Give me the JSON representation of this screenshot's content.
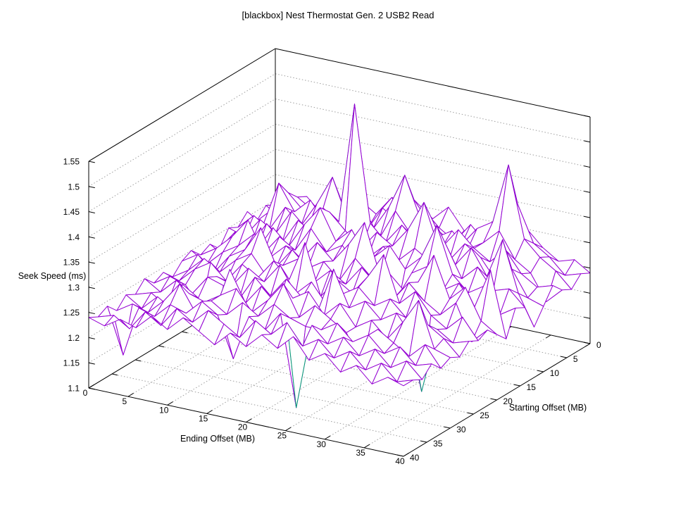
{
  "title": "[blackbox] Nest Thermostat Gen. 2 USB2 Read",
  "chart_data": {
    "type": "surface3d-wireframe",
    "title": "[blackbox] Nest Thermostat Gen. 2 USB2 Read",
    "xlabel": "Ending Offset (MB)",
    "ylabel": "Starting Offset (MB)",
    "zlabel": "Seek Speed (ms)",
    "x_range": [
      0,
      40
    ],
    "y_range": [
      0,
      40
    ],
    "z_range": [
      1.1,
      1.55
    ],
    "x_ticks": [
      0,
      5,
      10,
      15,
      20,
      25,
      30,
      35,
      40
    ],
    "y_ticks": [
      0,
      5,
      10,
      15,
      20,
      25,
      30,
      35,
      40
    ],
    "z_ticks": [
      1.1,
      1.15,
      1.2,
      1.25,
      1.3,
      1.35,
      1.4,
      1.45,
      1.5,
      1.55
    ],
    "z_tick_labels": [
      "1.1",
      "1.15",
      "1.2",
      "1.25",
      "1.3",
      "1.35",
      "1.4",
      "1.45",
      "1.5",
      "1.55"
    ],
    "grid": "dotted",
    "legend": "none",
    "colors": {
      "surface_top": "#9400d3",
      "surface_bottom": "#009e73",
      "grid": "#9e9e9e",
      "box": "#000000",
      "background": "#ffffff",
      "text": "#000000"
    },
    "surface": {
      "ending_offset": [
        0,
        2,
        4,
        6,
        8,
        10,
        12,
        14,
        16,
        18,
        20,
        22,
        24,
        26,
        28,
        30,
        32,
        34,
        36,
        38,
        40
      ],
      "starting_offset": [
        0,
        2,
        4,
        6,
        8,
        10,
        12,
        14,
        16,
        18,
        20,
        22,
        24,
        26,
        28,
        30,
        32,
        34,
        36,
        38,
        40
      ],
      "seek_speed_ms_rows_by_starting_offset": [
        [
          1.24,
          1.25,
          1.27,
          1.24,
          1.26,
          1.28,
          1.25,
          1.27,
          1.3,
          1.26,
          1.28,
          1.31,
          1.27,
          1.25,
          1.29,
          1.26,
          1.3,
          1.27,
          1.25,
          1.26,
          1.24
        ],
        [
          1.25,
          1.23,
          1.28,
          1.26,
          1.29,
          1.25,
          1.3,
          1.28,
          1.32,
          1.27,
          1.31,
          1.28,
          1.26,
          1.3,
          1.27,
          1.32,
          1.36,
          1.29,
          1.27,
          1.24,
          1.25
        ],
        [
          1.23,
          1.26,
          1.3,
          1.27,
          1.25,
          1.31,
          1.28,
          1.26,
          1.31,
          1.29,
          1.34,
          1.3,
          1.28,
          1.27,
          1.31,
          1.33,
          1.45,
          1.31,
          1.28,
          1.26,
          1.23
        ],
        [
          1.26,
          1.24,
          1.33,
          1.28,
          1.31,
          1.27,
          1.32,
          1.3,
          1.28,
          1.33,
          1.4,
          1.32,
          1.29,
          1.31,
          1.28,
          1.3,
          1.33,
          1.28,
          1.26,
          1.21,
          1.24
        ],
        [
          1.24,
          1.27,
          1.25,
          1.3,
          1.27,
          1.32,
          1.38,
          1.3,
          1.33,
          1.28,
          1.34,
          1.3,
          1.32,
          1.29,
          1.33,
          1.3,
          1.28,
          1.31,
          1.27,
          1.25,
          1.26
        ],
        [
          1.25,
          1.24,
          1.28,
          1.26,
          1.31,
          1.28,
          1.33,
          1.31,
          1.55,
          1.32,
          1.29,
          1.33,
          1.3,
          1.35,
          1.28,
          1.32,
          1.3,
          1.26,
          1.29,
          1.24,
          1.23
        ],
        [
          1.22,
          1.26,
          1.24,
          1.29,
          1.26,
          1.31,
          1.29,
          1.34,
          1.31,
          1.28,
          1.32,
          1.3,
          1.34,
          1.4,
          1.31,
          1.29,
          1.33,
          1.28,
          1.36,
          1.26,
          1.2
        ],
        [
          1.24,
          1.22,
          1.27,
          1.25,
          1.3,
          1.27,
          1.32,
          1.36,
          1.3,
          1.33,
          1.28,
          1.31,
          1.29,
          1.32,
          1.3,
          1.34,
          1.28,
          1.31,
          1.27,
          1.28,
          1.25
        ],
        [
          1.23,
          1.25,
          1.28,
          1.32,
          1.26,
          1.3,
          1.28,
          1.33,
          1.29,
          1.31,
          1.27,
          1.3,
          1.33,
          1.29,
          1.32,
          1.39,
          1.3,
          1.27,
          1.29,
          1.24,
          1.26
        ],
        [
          1.25,
          1.23,
          1.26,
          1.28,
          1.31,
          1.27,
          1.3,
          1.28,
          1.32,
          1.29,
          1.33,
          1.38,
          1.28,
          1.21,
          1.3,
          1.32,
          1.28,
          1.3,
          1.26,
          1.34,
          1.21
        ],
        [
          1.24,
          1.26,
          1.23,
          1.27,
          1.29,
          1.34,
          1.27,
          1.31,
          1.28,
          1.3,
          1.27,
          1.32,
          1.29,
          1.31,
          1.28,
          1.3,
          1.36,
          1.28,
          1.31,
          1.25,
          1.23
        ],
        [
          1.22,
          1.24,
          1.27,
          1.25,
          1.28,
          1.3,
          1.26,
          1.29,
          1.31,
          1.27,
          1.3,
          1.28,
          1.32,
          1.29,
          1.27,
          1.31,
          1.28,
          1.26,
          1.29,
          1.22,
          1.25
        ],
        [
          1.24,
          1.23,
          1.26,
          1.28,
          1.25,
          1.29,
          1.27,
          1.31,
          1.28,
          1.36,
          1.26,
          1.3,
          1.28,
          1.32,
          1.37,
          1.28,
          1.31,
          1.27,
          1.25,
          1.28,
          1.24
        ],
        [
          1.23,
          1.25,
          1.24,
          1.2,
          1.27,
          1.26,
          1.3,
          1.28,
          1.32,
          1.27,
          1.3,
          1.26,
          1.29,
          1.31,
          1.28,
          1.3,
          1.27,
          1.13,
          1.26,
          1.24,
          1.25
        ],
        [
          1.25,
          1.23,
          1.26,
          1.24,
          1.28,
          1.27,
          1.25,
          1.3,
          1.27,
          1.31,
          1.28,
          1.26,
          1.35,
          1.28,
          1.3,
          1.27,
          1.29,
          1.25,
          1.28,
          1.26,
          1.23
        ],
        [
          1.23,
          1.24,
          1.22,
          1.27,
          1.25,
          1.17,
          1.32,
          1.26,
          1.3,
          1.27,
          1.29,
          1.31,
          1.27,
          1.3,
          1.26,
          1.28,
          1.25,
          1.29,
          1.34,
          1.25,
          1.24
        ],
        [
          1.24,
          1.22,
          1.25,
          1.23,
          1.27,
          1.26,
          1.28,
          1.3,
          1.26,
          1.29,
          1.33,
          1.27,
          1.3,
          1.28,
          1.26,
          1.2,
          1.28,
          1.26,
          1.24,
          1.27,
          1.23
        ],
        [
          1.22,
          1.24,
          1.23,
          1.26,
          1.3,
          1.25,
          1.28,
          1.26,
          1.29,
          1.27,
          1.3,
          1.28,
          1.27,
          1.27,
          1.29,
          1.26,
          1.28,
          1.25,
          1.27,
          1.24,
          1.25
        ],
        [
          1.24,
          1.15,
          1.25,
          1.24,
          1.27,
          1.26,
          1.29,
          1.27,
          1.19,
          1.28,
          1.26,
          1.3,
          1.12,
          1.29,
          1.26,
          1.28,
          1.25,
          1.27,
          1.24,
          1.26,
          1.23
        ],
        [
          1.23,
          1.24,
          1.22,
          1.26,
          1.24,
          1.28,
          1.26,
          1.29,
          1.27,
          1.25,
          1.29,
          1.27,
          1.3,
          1.26,
          1.28,
          1.25,
          1.27,
          1.24,
          1.26,
          1.23,
          1.24
        ],
        [
          1.24,
          1.23,
          1.25,
          1.24,
          1.27,
          1.25,
          1.28,
          1.26,
          1.24,
          1.27,
          1.25,
          1.28,
          1.26,
          1.29,
          1.25,
          1.27,
          1.24,
          1.26,
          1.23,
          1.25,
          1.24
        ]
      ]
    }
  }
}
